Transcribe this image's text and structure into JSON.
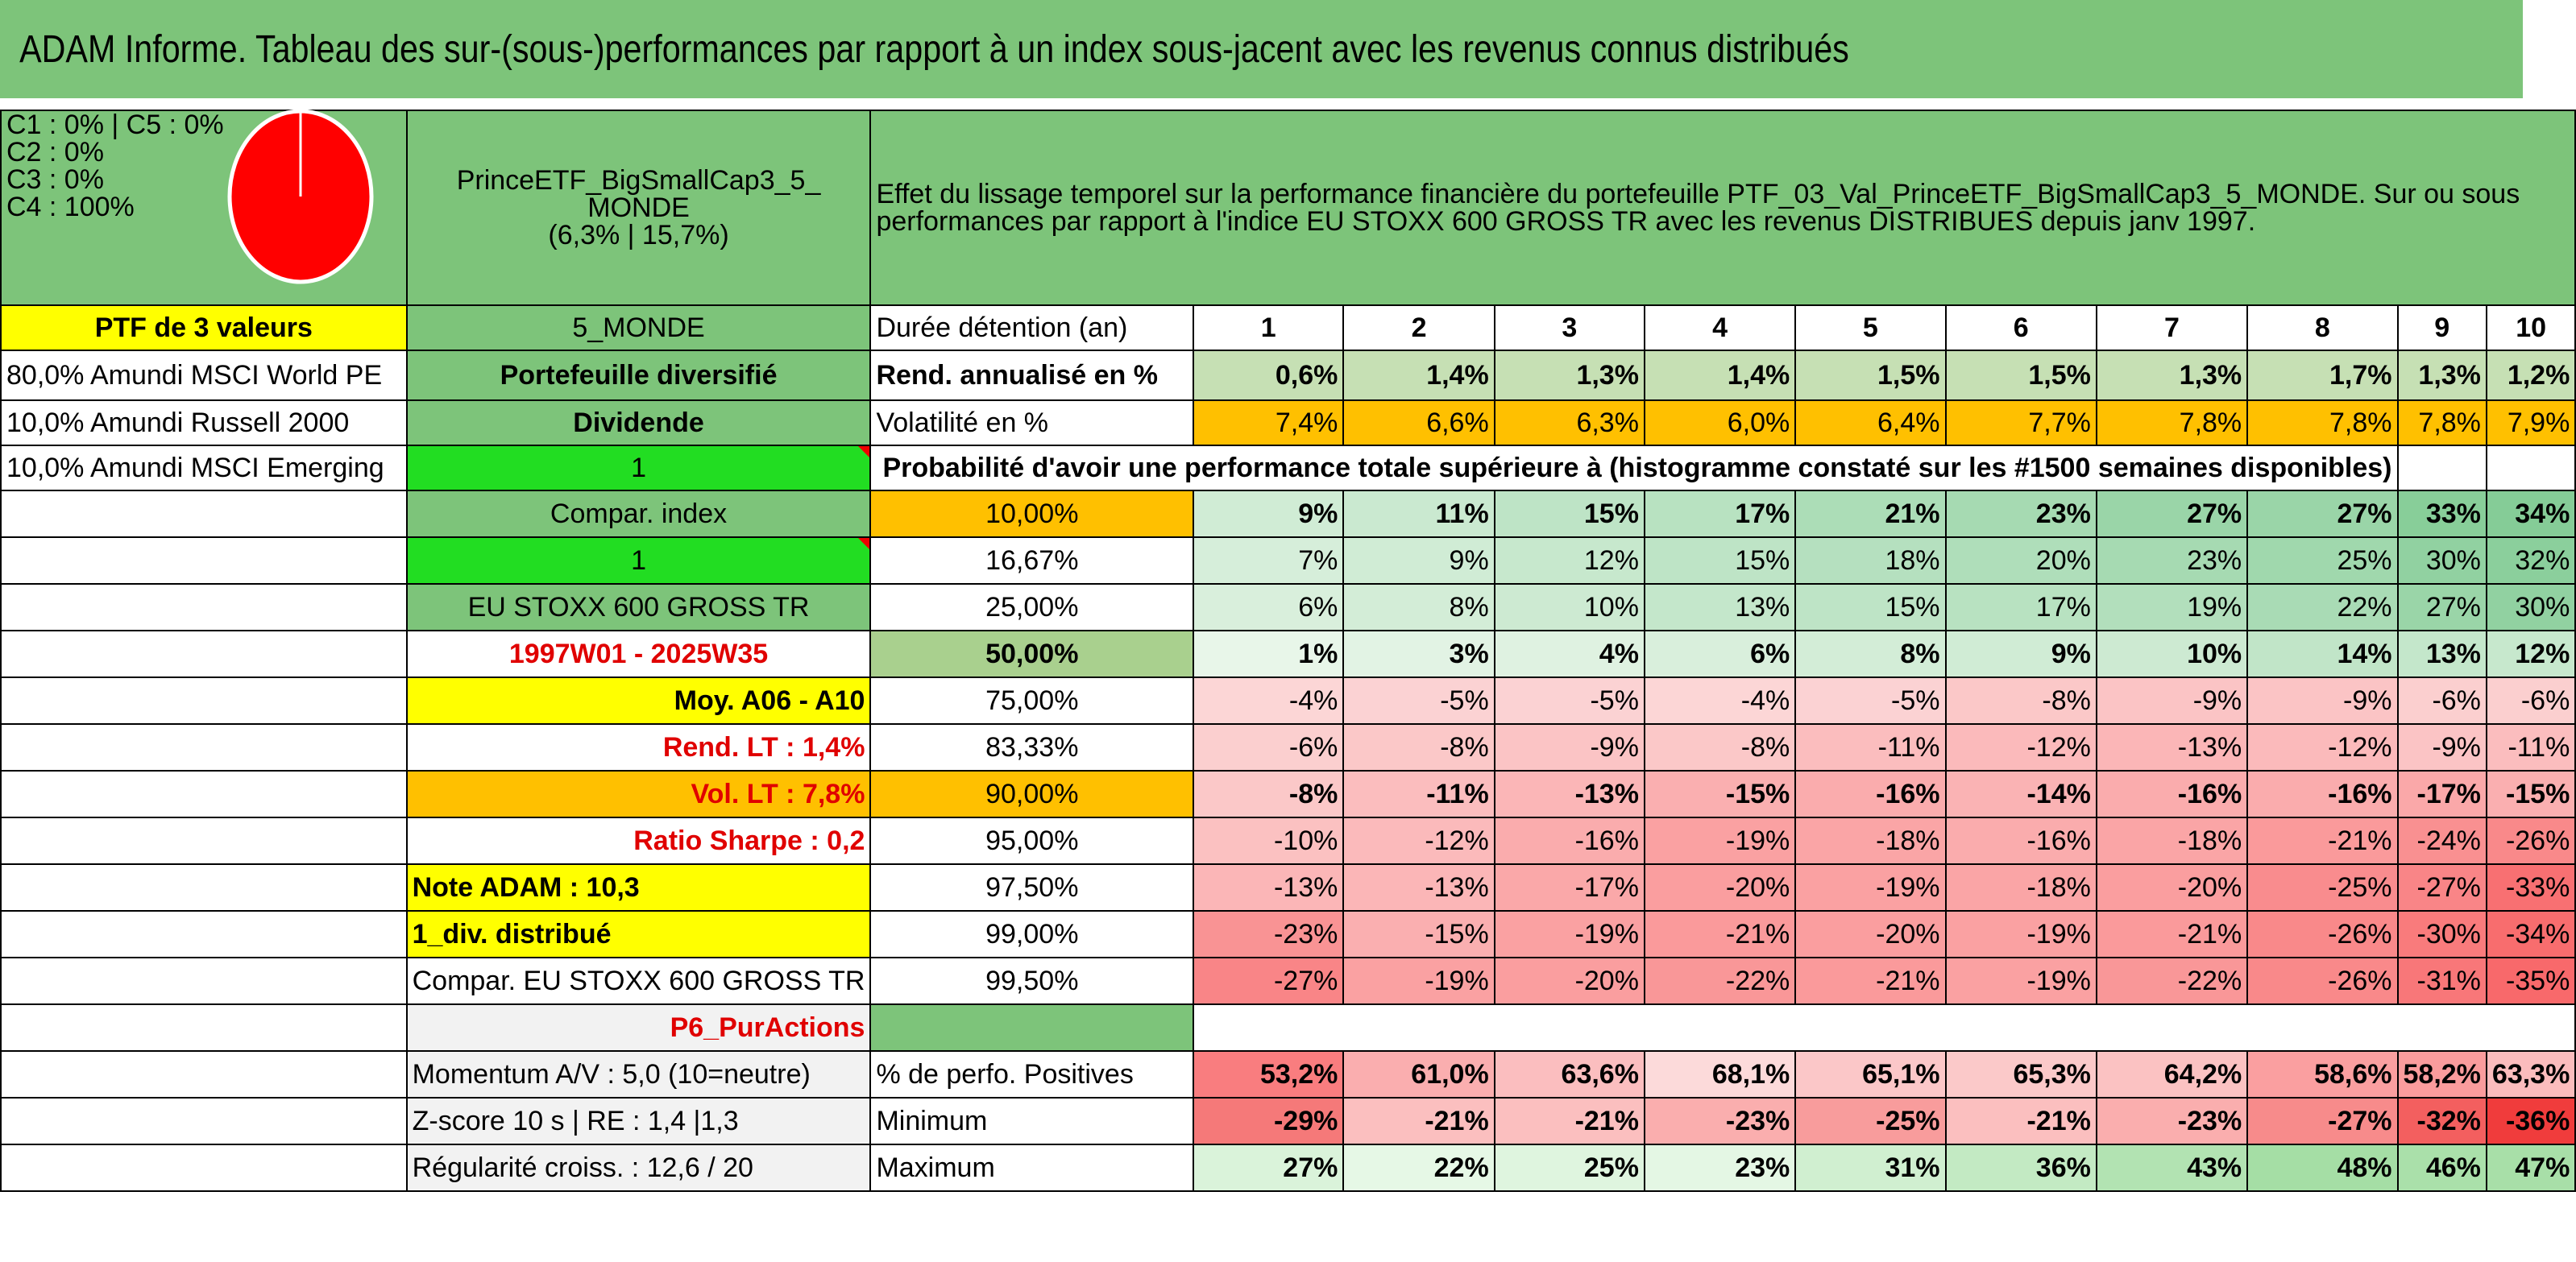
{
  "title": "ADAM Informe. Tableau des sur-(sous-)performances par rapport à un index sous-jacent avec les revenus connus distribués",
  "mix": [
    "C1 : 0% | C5 : 0%",
    "C2 : 0%",
    "C3 : 0%",
    "C4 : 100%"
  ],
  "pie_color": "#ff0000",
  "portfolio": {
    "name_line1": "PrinceETF_BigSmallCap3_5_",
    "name_line2": "MONDE",
    "name_line3": "(6,3% | 15,7%)",
    "description": "Effet du lissage temporel sur la performance financière du portefeuille PTF_03_Val_PrinceETF_BigSmallCap3_5_MONDE. Sur ou sous performances par rapport à l'indice EU STOXX 600 GROSS TR avec les revenus DISTRIBUES depuis janv 1997.",
    "ptf_count": "PTF de 3 valeurs",
    "short_name": "5_MONDE",
    "holdings": [
      "80,0% Amundi MSCI World PE",
      "10,0% Amundi Russell 2000",
      "10,0% Amundi MSCI Emerging"
    ],
    "type": "Portefeuille diversifié",
    "dividende_label": "Dividende",
    "dividende_value": "1",
    "compar_label": "Compar. index",
    "compar_value": "1",
    "index_name": "EU STOXX 600 GROSS TR",
    "period": "1997W01 - 2025W35",
    "moy": "Moy. A06 - A10",
    "rend_lt": "Rend. LT : 1,4%",
    "vol_lt": "Vol. LT : 7,8%",
    "sharpe": "Ratio Sharpe : 0,2",
    "note": "Note ADAM : 10,3",
    "div_distrib": "1_div. distribué",
    "compar_full": "Compar. EU STOXX 600 GROSS TR",
    "p6": "P6_PurActions",
    "momentum": "Momentum A/V : 5,0 (10=neutre)",
    "zscore": "Z-score 10 s | RE : 1,4 |1,3",
    "regularite": "Régularité croiss. : 12,6 / 20"
  },
  "labels": {
    "duree": "Durée détention (an)",
    "rend": "Rend. annualisé en %",
    "vol": "Volatilité en %",
    "proba": "Probabilité d'avoir une performance totale supérieure à (histogramme constaté sur les #1500 semaines disponibles)",
    "pct_pos": "% de perfo. Positives",
    "min": "Minimum",
    "max": "Maximum"
  },
  "years": [
    "1",
    "2",
    "3",
    "4",
    "5",
    "6",
    "7",
    "8",
    "9",
    "10"
  ],
  "rend": [
    "0,6%",
    "1,4%",
    "1,3%",
    "1,4%",
    "1,5%",
    "1,5%",
    "1,3%",
    "1,7%",
    "1,3%",
    "1,2%"
  ],
  "vol": [
    "7,4%",
    "6,6%",
    "6,3%",
    "6,0%",
    "6,4%",
    "7,7%",
    "7,8%",
    "7,8%",
    "7,8%",
    "7,9%"
  ],
  "quantiles": [
    {
      "q": "10,00%",
      "values": [
        "9%",
        "11%",
        "15%",
        "17%",
        "21%",
        "23%",
        "27%",
        "27%",
        "33%",
        "34%"
      ]
    },
    {
      "q": "16,67%",
      "values": [
        "7%",
        "9%",
        "12%",
        "15%",
        "18%",
        "20%",
        "23%",
        "25%",
        "30%",
        "32%"
      ]
    },
    {
      "q": "25,00%",
      "values": [
        "6%",
        "8%",
        "10%",
        "13%",
        "15%",
        "17%",
        "19%",
        "22%",
        "27%",
        "30%"
      ]
    },
    {
      "q": "50,00%",
      "values": [
        "1%",
        "3%",
        "4%",
        "6%",
        "8%",
        "9%",
        "10%",
        "14%",
        "13%",
        "12%"
      ]
    },
    {
      "q": "75,00%",
      "values": [
        "-4%",
        "-5%",
        "-5%",
        "-4%",
        "-5%",
        "-8%",
        "-9%",
        "-9%",
        "-6%",
        "-6%"
      ]
    },
    {
      "q": "83,33%",
      "values": [
        "-6%",
        "-8%",
        "-9%",
        "-8%",
        "-11%",
        "-12%",
        "-13%",
        "-12%",
        "-9%",
        "-11%"
      ]
    },
    {
      "q": "90,00%",
      "values": [
        "-8%",
        "-11%",
        "-13%",
        "-15%",
        "-16%",
        "-14%",
        "-16%",
        "-16%",
        "-17%",
        "-15%"
      ]
    },
    {
      "q": "95,00%",
      "values": [
        "-10%",
        "-12%",
        "-16%",
        "-19%",
        "-18%",
        "-16%",
        "-18%",
        "-21%",
        "-24%",
        "-26%"
      ]
    },
    {
      "q": "97,50%",
      "values": [
        "-13%",
        "-13%",
        "-17%",
        "-20%",
        "-19%",
        "-18%",
        "-20%",
        "-25%",
        "-27%",
        "-33%"
      ]
    },
    {
      "q": "99,00%",
      "values": [
        "-23%",
        "-15%",
        "-19%",
        "-21%",
        "-20%",
        "-19%",
        "-21%",
        "-26%",
        "-30%",
        "-34%"
      ]
    },
    {
      "q": "99,50%",
      "values": [
        "-27%",
        "-19%",
        "-20%",
        "-22%",
        "-21%",
        "-19%",
        "-22%",
        "-26%",
        "-31%",
        "-35%"
      ]
    }
  ],
  "pct_pos": [
    "53,2%",
    "61,0%",
    "63,6%",
    "68,1%",
    "65,1%",
    "65,3%",
    "64,2%",
    "58,6%",
    "58,2%",
    "63,3%"
  ],
  "minimum": [
    "-29%",
    "-21%",
    "-21%",
    "-23%",
    "-25%",
    "-21%",
    "-23%",
    "-27%",
    "-32%",
    "-36%"
  ],
  "maximum": [
    "27%",
    "22%",
    "25%",
    "23%",
    "31%",
    "36%",
    "43%",
    "48%",
    "46%",
    "47%"
  ]
}
